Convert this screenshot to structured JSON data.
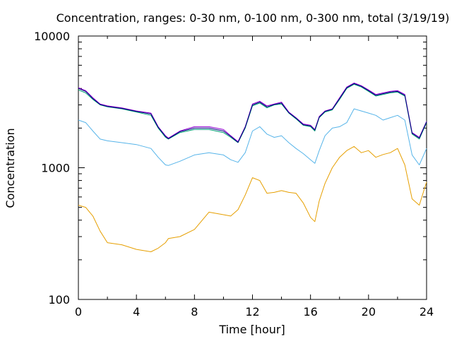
{
  "chart_data": {
    "type": "line",
    "title": "Concentration, ranges: 0-30 nm, 0-100 nm, 0-300 nm, total (3/19/19)",
    "xlabel": "Time [hour]",
    "ylabel": "Concentration",
    "xlim": [
      0,
      24
    ],
    "ylim": [
      100,
      10000
    ],
    "y_scale": "log",
    "x_ticks": [
      "0",
      "4",
      "8",
      "12",
      "16",
      "20",
      "24"
    ],
    "y_ticks": [
      "100",
      "1000",
      "10000"
    ],
    "grid": false,
    "legend": "none",
    "x": [
      0,
      0.5,
      1,
      1.5,
      2,
      3,
      4,
      5,
      5.5,
      6,
      6.2,
      7,
      8,
      9,
      10,
      10.5,
      11,
      11.5,
      12,
      12.5,
      13,
      13.5,
      14,
      14.5,
      15,
      15.5,
      16,
      16.3,
      16.6,
      17,
      17.5,
      18,
      18.5,
      19,
      19.5,
      20,
      20.5,
      21,
      21.5,
      22,
      22.5,
      23,
      23.5,
      24
    ],
    "series": [
      {
        "color": "#e69f00",
        "values": [
          520,
          500,
          430,
          330,
          270,
          260,
          240,
          230,
          245,
          270,
          290,
          300,
          340,
          460,
          440,
          430,
          480,
          620,
          840,
          800,
          640,
          650,
          670,
          650,
          640,
          540,
          420,
          390,
          560,
          760,
          1000,
          1200,
          1350,
          1450,
          1300,
          1350,
          1200,
          1260,
          1300,
          1400,
          1050,
          580,
          520,
          780
        ]
      },
      {
        "color": "#56b4e9",
        "values": [
          2300,
          2200,
          1900,
          1650,
          1600,
          1550,
          1500,
          1400,
          1200,
          1050,
          1040,
          1120,
          1250,
          1300,
          1250,
          1150,
          1100,
          1300,
          1900,
          2050,
          1800,
          1700,
          1750,
          1550,
          1400,
          1280,
          1150,
          1080,
          1350,
          1750,
          2000,
          2050,
          2200,
          2800,
          2700,
          2600,
          2500,
          2300,
          2400,
          2500,
          2300,
          1250,
          1050,
          1400
        ]
      },
      {
        "color": "#009e73",
        "values": [
          3900,
          3700,
          3300,
          3000,
          2900,
          2800,
          2650,
          2500,
          2000,
          1700,
          1650,
          1850,
          1950,
          1950,
          1850,
          1700,
          1550,
          2000,
          2950,
          3100,
          2850,
          3000,
          3050,
          2600,
          2350,
          2100,
          2050,
          1900,
          2400,
          2650,
          2750,
          3300,
          4000,
          4300,
          4100,
          3800,
          3500,
          3600,
          3700,
          3750,
          3500,
          1800,
          1650,
          2200
        ]
      },
      {
        "color": "#9400d3",
        "values": [
          4050,
          3850,
          3400,
          3050,
          2950,
          2850,
          2700,
          2600,
          2050,
          1750,
          1680,
          1900,
          2050,
          2050,
          1950,
          1750,
          1580,
          2050,
          3050,
          3200,
          2950,
          3050,
          3150,
          2650,
          2400,
          2150,
          2100,
          1950,
          2450,
          2700,
          2800,
          3400,
          4100,
          4400,
          4200,
          3900,
          3600,
          3700,
          3800,
          3850,
          3600,
          1850,
          1700,
          2250
        ]
      },
      {
        "color": "#000080",
        "values": [
          4000,
          3800,
          3350,
          3020,
          2920,
          2820,
          2680,
          2560,
          2030,
          1730,
          1660,
          1880,
          2000,
          2000,
          1900,
          1730,
          1560,
          2030,
          3000,
          3150,
          2900,
          3020,
          3100,
          2620,
          2380,
          2120,
          2080,
          1930,
          2420,
          2680,
          2780,
          3350,
          4050,
          4350,
          4150,
          3850,
          3550,
          3650,
          3750,
          3800,
          3550,
          1830,
          1680,
          2230
        ]
      }
    ]
  }
}
